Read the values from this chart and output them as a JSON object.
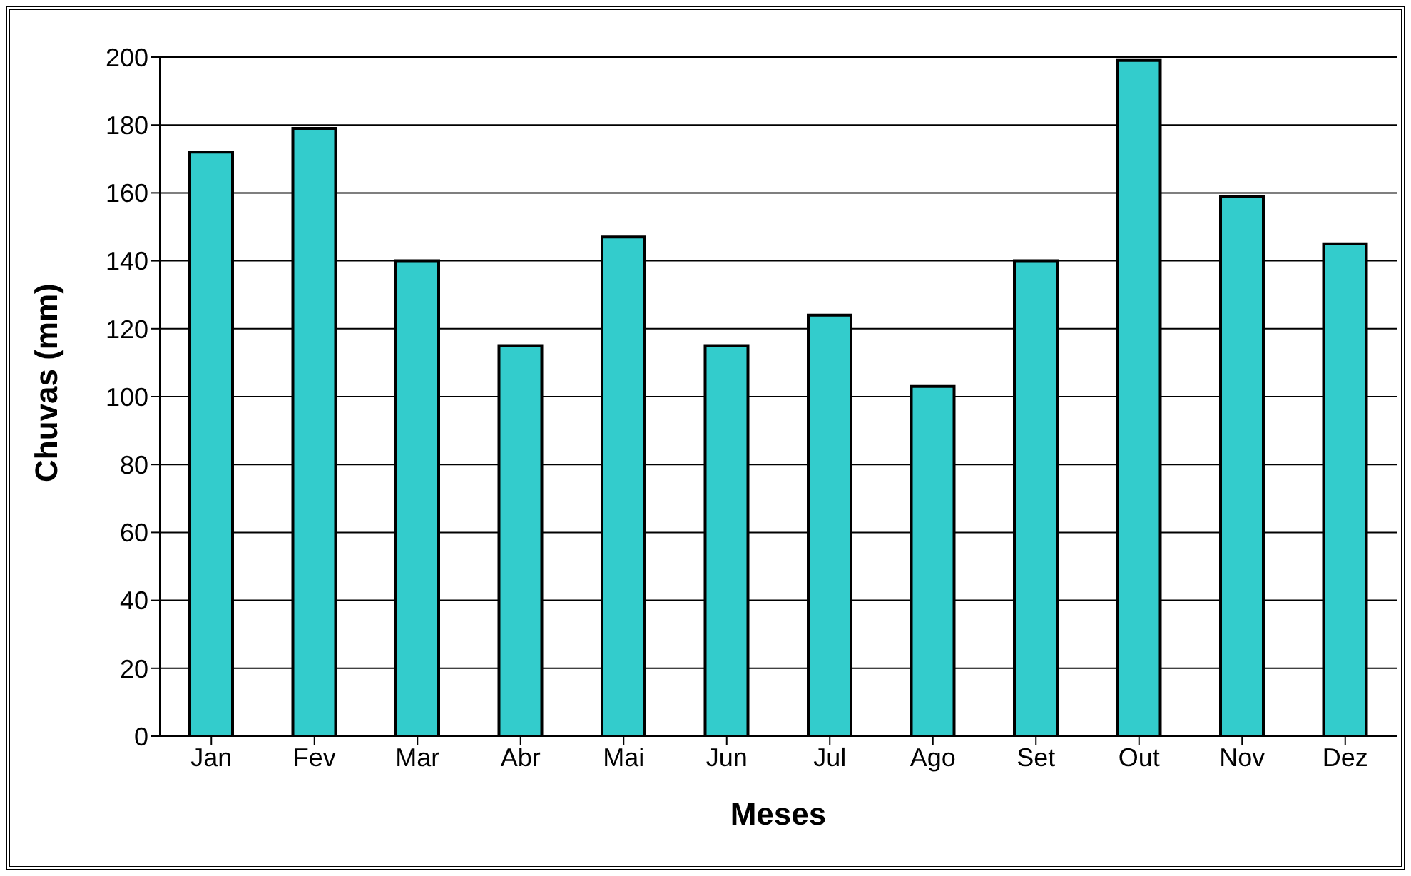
{
  "chart_data": {
    "type": "bar",
    "xlabel": "Meses",
    "ylabel": "Chuvas (mm)",
    "categories": [
      "Jan",
      "Fev",
      "Mar",
      "Abr",
      "Mai",
      "Jun",
      "Jul",
      "Ago",
      "Set",
      "Out",
      "Nov",
      "Dez"
    ],
    "values": [
      172,
      179,
      140,
      115,
      147,
      115,
      124,
      103,
      140,
      199,
      159,
      145
    ],
    "color": "#33cccc",
    "ylim": [
      0,
      200
    ],
    "yticks": [
      0,
      20,
      40,
      60,
      80,
      100,
      120,
      140,
      160,
      180,
      200
    ],
    "grid": "y"
  }
}
